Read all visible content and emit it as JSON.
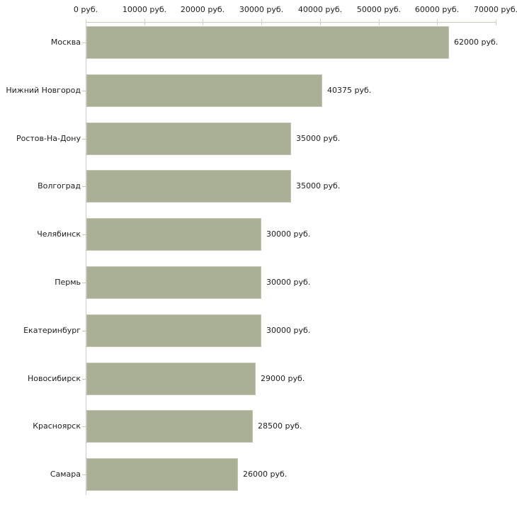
{
  "chart_data": {
    "type": "bar",
    "orientation": "horizontal",
    "title": "",
    "xlabel": "",
    "ylabel": "",
    "grid": false,
    "legend": false,
    "categories": [
      "Москва",
      "Нижний Новгород",
      "Ростов-На-Дону",
      "Волгоград",
      "Челябинск",
      "Пермь",
      "Екатеринбург",
      "Новосибирск",
      "Красноярск",
      "Самара"
    ],
    "values": [
      62000,
      40375,
      35000,
      35000,
      30000,
      30000,
      30000,
      29000,
      28500,
      26000
    ],
    "value_labels": [
      "62000 руб.",
      "40375 руб.",
      "35000 руб.",
      "35000 руб.",
      "30000 руб.",
      "30000 руб.",
      "30000 руб.",
      "29000 руб.",
      "28500 руб.",
      "26000 руб."
    ],
    "x_axis": {
      "position": "top",
      "min": 0,
      "max": 70000,
      "step": 10000,
      "tick_values": [
        0,
        10000,
        20000,
        30000,
        40000,
        50000,
        60000,
        70000
      ],
      "tick_labels": [
        "0 руб.",
        "10000 руб.",
        "20000 руб.",
        "30000 руб.",
        "40000 руб.",
        "50000 руб.",
        "60000 руб.",
        "70000 руб."
      ]
    },
    "colors": {
      "bar_fill": "#a9b096",
      "bar_border": "#c2c6af",
      "h_axis_line": "#c9cbb7",
      "v_axis_line": "#cbcbcb",
      "tick_mark": "#d2d4bd",
      "category_tick": "#c6cab0",
      "text": "#202020",
      "background": "#ffffff"
    }
  }
}
